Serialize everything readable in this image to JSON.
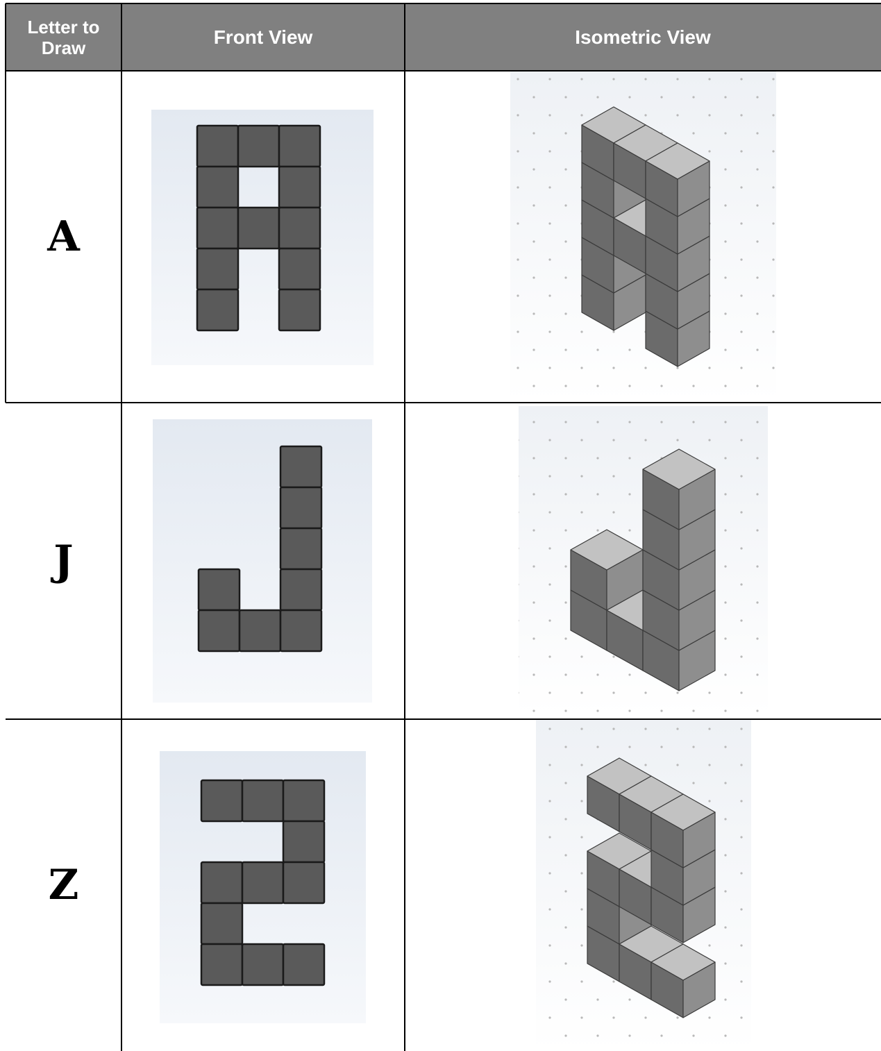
{
  "table": {
    "header": [
      "Letter to Draw",
      "Front View",
      "Isometric View"
    ],
    "rows": [
      [
        "A"
      ],
      [
        "J"
      ],
      [
        "Z"
      ]
    ]
  }
}
